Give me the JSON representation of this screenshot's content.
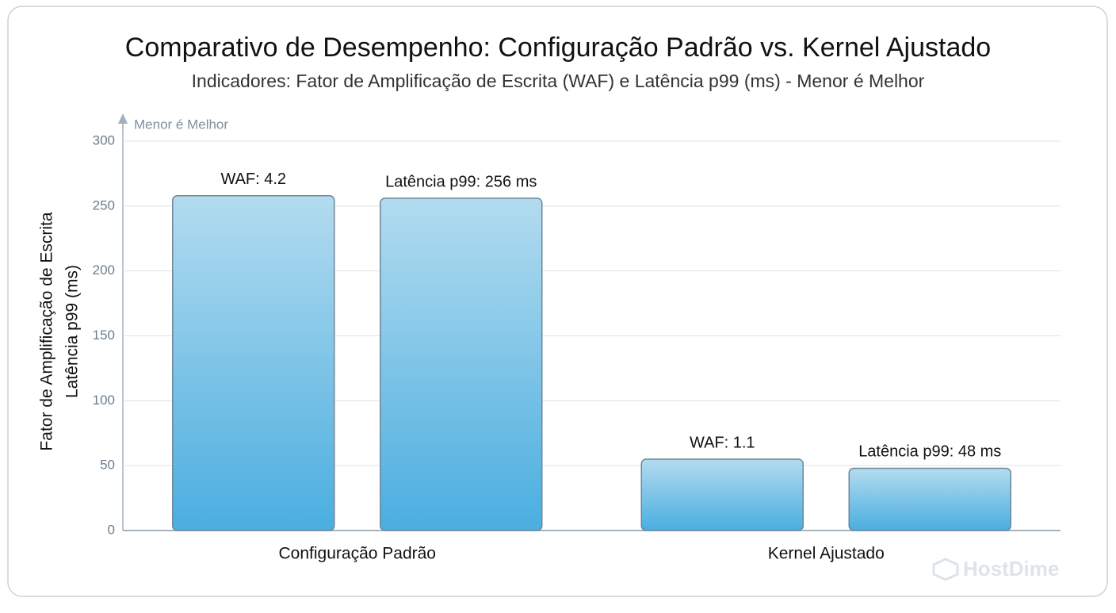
{
  "chart_data": {
    "type": "bar",
    "title": "Comparativo de Desempenho: Configuração Padrão vs. Kernel Ajustado",
    "subtitle": "Indicadores: Fator de Amplificação de Escrita (WAF) e Latência p99 (ms) - Menor é Melhor",
    "y_label": [
      "Fator de Amplificação de Escrita",
      "Latência p99 (ms)"
    ],
    "annotation": "Menor é Melhor",
    "watermark": "HostDime",
    "categories": [
      "Configuração Padrão",
      "Kernel Ajustado"
    ],
    "series": [
      {
        "color": "#4aaee0",
        "values": [
          258,
          55
        ],
        "labels": [
          "WAF: 4.2",
          "WAF: 1.1"
        ]
      },
      {
        "color": "#4aaee0",
        "values": [
          256,
          48
        ],
        "labels": [
          "Latência p99: 256 ms",
          "Latência p99: 48 ms"
        ]
      }
    ],
    "ylim": [
      0,
      300
    ],
    "yticks": [
      0,
      50,
      100,
      150,
      200,
      250,
      300
    ],
    "grid": true
  }
}
